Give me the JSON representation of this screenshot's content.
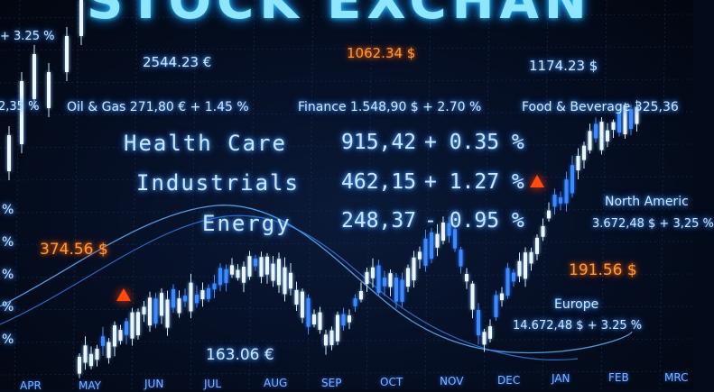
{
  "title": "STOCK EXCHAN",
  "sectors": [
    {
      "name": "Health Care",
      "value": "915,42",
      "change": "+ 0.35 %"
    },
    {
      "name": "Industrials",
      "value": "462,15",
      "change": "+ 1.27 %"
    },
    {
      "name": "Energy",
      "value": "248,37",
      "change": "- 0.95 %"
    }
  ],
  "ticker_row": {
    "oil": "Oil & Gas 271,80 € + 1.45 %",
    "finance": "Finance 1.548,90 $ + 2.70 %",
    "food": "Food & Beverage 325,36",
    "left_partial": "2,35 %"
  },
  "prices": {
    "p1": "2544.23 €",
    "p2": "1062.34 $",
    "p3": "1174.23 $",
    "p4": "374.56 $",
    "p5": "163.06 €",
    "p6": "191.56 $"
  },
  "regions": {
    "north_america_name": "North Americ",
    "north_america_value": "3.672,48 $ + 3,25 %",
    "europe_name": "Europe",
    "europe_value": "14.672,48 $ + 3.25 %"
  },
  "top_left": "+ 3.25 %",
  "left_edge": [
    "%",
    "%",
    "%",
    "%",
    "%"
  ],
  "months": [
    "APR",
    "MAY",
    "JUN",
    "JUL",
    "AUG",
    "SEP",
    "OCT",
    "NOV",
    "DEC",
    "JAN",
    "FEB",
    "MRC"
  ],
  "colors": {
    "bg": "#030a1a",
    "text_blue": "#cfe6ff",
    "cyan": "#8fe6ff",
    "orange": "#ff9a3a",
    "candle": "#e9f3ff",
    "candle_blue": "#3a8bff",
    "arrow": "#ff4a10"
  }
}
